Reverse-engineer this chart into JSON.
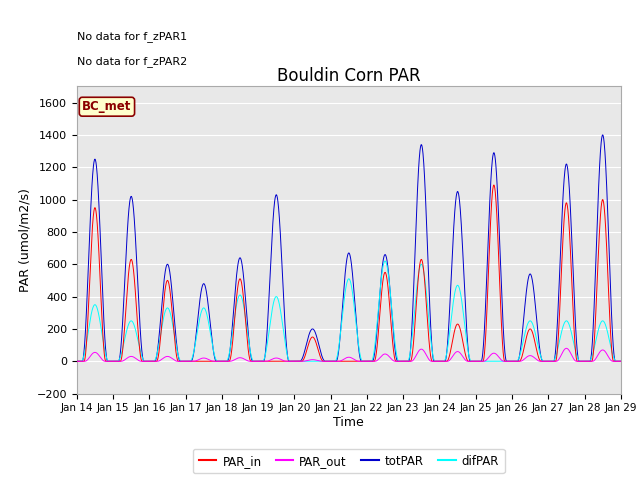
{
  "title": "Bouldin Corn PAR",
  "ylabel": "PAR (umol/m2/s)",
  "xlabel": "Time",
  "ylim": [
    -200,
    1700
  ],
  "yticks": [
    -200,
    0,
    200,
    400,
    600,
    800,
    1000,
    1200,
    1400,
    1600
  ],
  "date_labels": [
    "Jan 14",
    "Jan 15",
    "Jan 16",
    "Jan 17",
    "Jan 18",
    "Jan 19",
    "Jan 20",
    "Jan 21",
    "Jan 22",
    "Jan 23",
    "Jan 24",
    "Jan 25",
    "Jan 26",
    "Jan 27",
    "Jan 28",
    "Jan 29"
  ],
  "no_data_text1": "No data for f_zPAR1",
  "no_data_text2": "No data for f_zPAR2",
  "bc_met_label": "BC_met",
  "background_color": "#e8e8e8",
  "days": 15
}
